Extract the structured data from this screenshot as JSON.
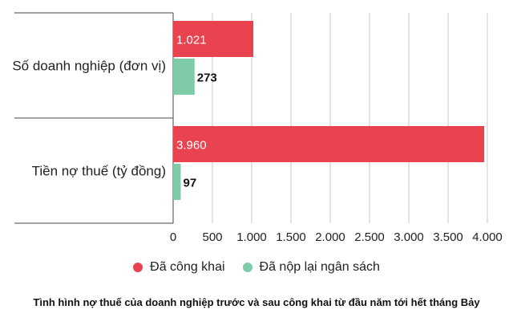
{
  "chart_data": {
    "type": "bar",
    "orientation": "horizontal",
    "categories": [
      "Số doanh nghiệp (đơn vị)",
      "Tiền nợ thuế (tỷ đồng)"
    ],
    "series": [
      {
        "name": "Đã công khai",
        "color": "#e8434f",
        "values": [
          1021,
          3960
        ],
        "labels": [
          "1.021",
          "3.960"
        ]
      },
      {
        "name": "Đã nộp lại ngân sách",
        "color": "#7fcba8",
        "values": [
          273,
          97
        ],
        "labels": [
          "273",
          "97"
        ]
      }
    ],
    "xlim": [
      0,
      4000
    ],
    "xticks": [
      0,
      500,
      1000,
      1500,
      2000,
      2500,
      3000,
      3500,
      4000
    ],
    "xtick_labels": [
      "0",
      "500",
      "1.000",
      "1.500",
      "2.000",
      "2.500",
      "3.000",
      "3.500",
      "4.000"
    ],
    "grid": true,
    "legend_position": "bottom",
    "title": "",
    "xlabel": "",
    "ylabel": ""
  },
  "caption": "Tình hình nợ thuế của doanh nghiệp trước và sau công khai từ đầu năm tới hết tháng Bảy"
}
